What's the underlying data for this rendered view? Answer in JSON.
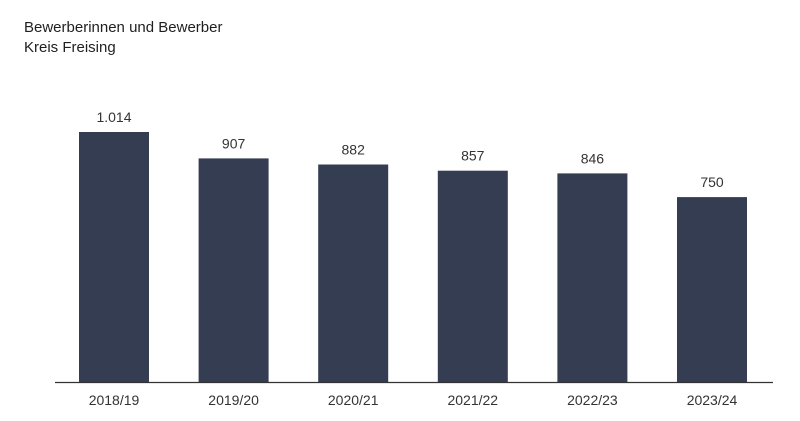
{
  "chart_data": {
    "type": "bar",
    "title": "Bewerberinnen und Bewerber",
    "subtitle": "Kreis Freising",
    "categories": [
      "2018/19",
      "2019/20",
      "2020/21",
      "2021/22",
      "2022/23",
      "2023/24"
    ],
    "values": [
      1014,
      907,
      882,
      857,
      846,
      750
    ],
    "data_labels": [
      "1.014",
      "907",
      "882",
      "857",
      "846",
      "750"
    ],
    "ylim": [
      0,
      1014
    ],
    "grid": false,
    "legend": "none",
    "bar_color": "#353d52",
    "axis_color": "#333333"
  }
}
